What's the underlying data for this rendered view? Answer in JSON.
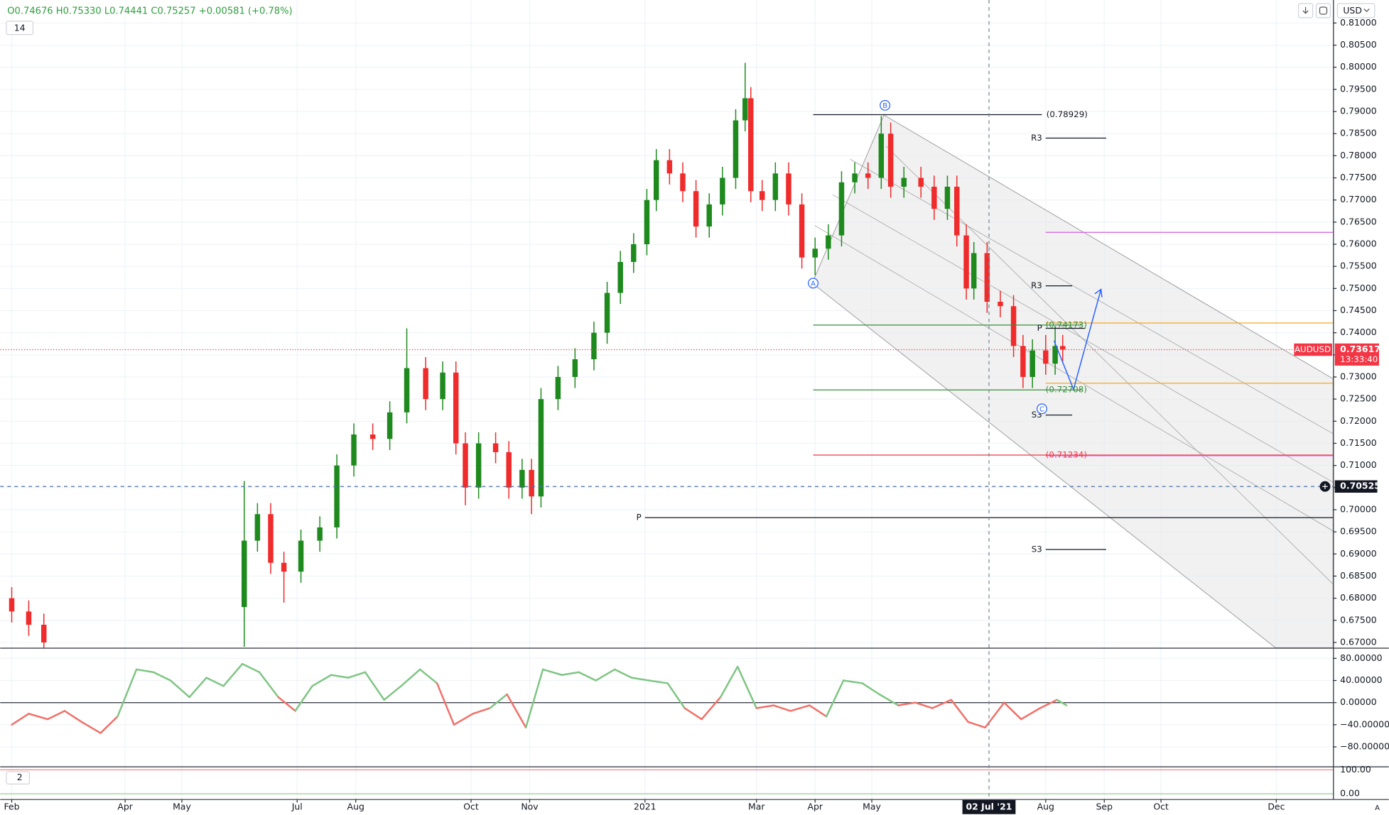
{
  "header": {
    "ohlc": "O0.74676 H0.75330 L0.74441 C0.75257 +0.00581 (+0.78%)",
    "indicator_1": "14",
    "indicator_2": "2",
    "currency": "USD"
  },
  "chart_data": [
    {
      "type": "candlestick",
      "symbol": "AUDUSD",
      "up_color": "#1e8a1e",
      "down_color": "#ef2b2b",
      "x": [
        0,
        9,
        17,
        123,
        130,
        137,
        144,
        153,
        163,
        172,
        181,
        191,
        200,
        209,
        219,
        228,
        235,
        240,
        247,
        256,
        263,
        270,
        275,
        280,
        289,
        298,
        308,
        315,
        322,
        329,
        336,
        341,
        348,
        355,
        362,
        369,
        376,
        383,
        388,
        391,
        397,
        404,
        411,
        418,
        425,
        432,
        439,
        446,
        453,
        460,
        465,
        472,
        481,
        488,
        495,
        500,
        505,
        509,
        516,
        523,
        530,
        535,
        540,
        547,
        552,
        556
      ],
      "open": [
        0.68,
        0.677,
        0.674,
        0.678,
        0.693,
        0.699,
        0.688,
        0.686,
        0.693,
        0.696,
        0.71,
        0.717,
        0.716,
        0.722,
        0.732,
        0.725,
        0.731,
        0.715,
        0.705,
        0.715,
        0.713,
        0.705,
        0.709,
        0.703,
        0.725,
        0.73,
        0.734,
        0.74,
        0.749,
        0.756,
        0.76,
        0.77,
        0.779,
        0.776,
        0.772,
        0.764,
        0.769,
        0.775,
        0.788,
        0.793,
        0.772,
        0.77,
        0.776,
        0.769,
        0.757,
        0.759,
        0.762,
        0.774,
        0.776,
        0.775,
        0.785,
        0.773,
        0.775,
        0.773,
        0.768,
        0.773,
        0.762,
        0.75,
        0.758,
        0.747,
        0.746,
        0.737,
        0.73,
        0.736,
        0.733,
        0.737
      ],
      "high": [
        0.6825,
        0.6795,
        0.6765,
        0.7065,
        0.7015,
        0.7015,
        0.6905,
        0.6955,
        0.6985,
        0.7125,
        0.7195,
        0.7195,
        0.7245,
        0.741,
        0.7345,
        0.7335,
        0.7335,
        0.7175,
        0.7175,
        0.7175,
        0.7155,
        0.7115,
        0.7115,
        0.7275,
        0.7325,
        0.7365,
        0.7425,
        0.7515,
        0.7585,
        0.7625,
        0.7725,
        0.7815,
        0.7815,
        0.7785,
        0.7745,
        0.7715,
        0.7775,
        0.7905,
        0.801,
        0.7955,
        0.7745,
        0.7785,
        0.7785,
        0.7715,
        0.7615,
        0.7645,
        0.7765,
        0.7785,
        0.7785,
        0.789,
        0.7875,
        0.7775,
        0.7775,
        0.7755,
        0.7755,
        0.7755,
        0.7645,
        0.7605,
        0.7605,
        0.7495,
        0.7485,
        0.7395,
        0.7385,
        0.7395,
        0.7415,
        0.7395
      ],
      "low": [
        0.6745,
        0.6715,
        0.6675,
        0.669,
        0.6905,
        0.6855,
        0.679,
        0.6835,
        0.6905,
        0.6935,
        0.7075,
        0.7135,
        0.7135,
        0.7195,
        0.7225,
        0.7225,
        0.7125,
        0.701,
        0.7025,
        0.7105,
        0.7025,
        0.7025,
        0.699,
        0.7005,
        0.7225,
        0.7275,
        0.7315,
        0.7375,
        0.7465,
        0.7535,
        0.7575,
        0.7675,
        0.7735,
        0.7695,
        0.7615,
        0.7615,
        0.7665,
        0.7725,
        0.7855,
        0.7695,
        0.7675,
        0.7675,
        0.7665,
        0.7545,
        0.753,
        0.7565,
        0.7595,
        0.7715,
        0.7725,
        0.7725,
        0.7705,
        0.7705,
        0.7705,
        0.7655,
        0.7655,
        0.7595,
        0.7475,
        0.7475,
        0.7445,
        0.7435,
        0.7345,
        0.7275,
        0.7275,
        0.7305,
        0.7305,
        0.7335
      ],
      "close": [
        0.677,
        0.674,
        0.67,
        0.693,
        0.699,
        0.688,
        0.686,
        0.693,
        0.696,
        0.71,
        0.717,
        0.716,
        0.722,
        0.732,
        0.725,
        0.731,
        0.715,
        0.705,
        0.715,
        0.713,
        0.705,
        0.709,
        0.703,
        0.725,
        0.73,
        0.734,
        0.74,
        0.749,
        0.756,
        0.76,
        0.77,
        0.779,
        0.776,
        0.772,
        0.764,
        0.769,
        0.775,
        0.788,
        0.793,
        0.772,
        0.77,
        0.776,
        0.769,
        0.757,
        0.759,
        0.762,
        0.774,
        0.776,
        0.775,
        0.785,
        0.773,
        0.775,
        0.773,
        0.768,
        0.773,
        0.762,
        0.75,
        0.758,
        0.747,
        0.746,
        0.737,
        0.73,
        0.736,
        0.733,
        0.737,
        0.7362
      ],
      "xlim": [
        -6.1,
        699
      ],
      "ylim": [
        0.6688,
        0.8152
      ],
      "xticks": [
        {
          "value": 0,
          "label": "Feb"
        },
        {
          "value": 60,
          "label": "Apr"
        },
        {
          "value": 90,
          "label": "May"
        },
        {
          "value": 151,
          "label": "Jul"
        },
        {
          "value": 182,
          "label": "Aug"
        },
        {
          "value": 243,
          "label": "Oct"
        },
        {
          "value": 274,
          "label": "Nov"
        },
        {
          "value": 335,
          "label": "2021"
        },
        {
          "value": 394,
          "label": "Mar"
        },
        {
          "value": 425,
          "label": "Apr"
        },
        {
          "value": 455,
          "label": "May"
        },
        {
          "value": 547,
          "label": "Aug"
        },
        {
          "value": 578,
          "label": "Sep"
        },
        {
          "value": 608,
          "label": "Oct"
        },
        {
          "value": 669,
          "label": "Dec"
        }
      ],
      "yticks": [
        {
          "value": 0.67,
          "label": "0.67000"
        },
        {
          "value": 0.675,
          "label": "0.67500"
        },
        {
          "value": 0.68,
          "label": "0.68000"
        },
        {
          "value": 0.685,
          "label": "0.68500"
        },
        {
          "value": 0.69,
          "label": "0.69000"
        },
        {
          "value": 0.695,
          "label": "0.69500"
        },
        {
          "value": 0.7,
          "label": "0.70000"
        },
        {
          "value": 0.705,
          "label": "0.70500"
        },
        {
          "value": 0.71,
          "label": "0.71000"
        },
        {
          "value": 0.715,
          "label": "0.71500"
        },
        {
          "value": 0.72,
          "label": "0.72000"
        },
        {
          "value": 0.725,
          "label": "0.72500"
        },
        {
          "value": 0.73,
          "label": "0.73000"
        },
        {
          "value": 0.735,
          "label": "0.73500"
        },
        {
          "value": 0.74,
          "label": "0.74000"
        },
        {
          "value": 0.745,
          "label": "0.74500"
        },
        {
          "value": 0.75,
          "label": "0.75000"
        },
        {
          "value": 0.755,
          "label": "0.75500"
        },
        {
          "value": 0.76,
          "label": "0.76000"
        },
        {
          "value": 0.765,
          "label": "0.76500"
        },
        {
          "value": 0.77,
          "label": "0.77000"
        },
        {
          "value": 0.775,
          "label": "0.77500"
        },
        {
          "value": 0.78,
          "label": "0.78000"
        },
        {
          "value": 0.785,
          "label": "0.78500"
        },
        {
          "value": 0.79,
          "label": "0.79000"
        },
        {
          "value": 0.795,
          "label": "0.79500"
        },
        {
          "value": 0.8,
          "label": "0.80000"
        },
        {
          "value": 0.805,
          "label": "0.80500"
        },
        {
          "value": 0.81,
          "label": "0.81000"
        }
      ],
      "grid": true,
      "last_price": {
        "value": 0.73617,
        "label": "0.73617"
      },
      "countdown": "13:33:40",
      "crosshair": {
        "x": 517,
        "x_label": "02 Jul '21",
        "y": 0.70525,
        "y_label": "0.70525"
      },
      "levels": [
        {
          "value": 0.78929,
          "label": "(0.78929)",
          "color": "#131722",
          "from": 424,
          "to": 545,
          "style": "fib"
        },
        {
          "value": 0.74173,
          "label": "(0.74173)",
          "color": "#388e3c",
          "from": 424,
          "to": 566,
          "style": "fib"
        },
        {
          "value": 0.72708,
          "label": "(0.72708)",
          "color": "#388e3c",
          "from": 424,
          "to": 566,
          "style": "fib"
        },
        {
          "value": 0.71234,
          "label": "(0.71234)",
          "color": "#f23645",
          "from": 424,
          "to": 699,
          "style": "fib"
        },
        {
          "value": 0.784,
          "label": "R3",
          "color": "#131722",
          "from": 547,
          "to": 579,
          "style": "pivot"
        },
        {
          "value": 0.7506,
          "label": "R3",
          "color": "#131722",
          "from": 547,
          "to": 561,
          "style": "pivot"
        },
        {
          "value": 0.741,
          "label": "P",
          "color": "#131722",
          "from": 547,
          "to": 568,
          "style": "pivot"
        },
        {
          "value": 0.7214,
          "label": "S3",
          "color": "#131722",
          "from": 547,
          "to": 561,
          "style": "pivot"
        },
        {
          "value": 0.6982,
          "label": "P",
          "color": "#131722",
          "from": 335,
          "to": 699,
          "style": "pivot"
        },
        {
          "value": 0.691,
          "label": "S3",
          "color": "#131722",
          "from": 547,
          "to": 579,
          "style": "pivot"
        },
        {
          "value": 0.7422,
          "color": "#f5a623",
          "from": 547,
          "to": 699
        },
        {
          "value": 0.7286,
          "color": "#f5a623",
          "from": 547,
          "to": 699
        },
        {
          "value": 0.7627,
          "color": "#d05ce3",
          "from": 547,
          "to": 699
        },
        {
          "value": 0.7122,
          "color": "#d05ce3",
          "from": 547,
          "to": 699
        }
      ],
      "waves": [
        {
          "label": "A",
          "x": 424,
          "y": 0.7512
        },
        {
          "label": "B",
          "x": 462,
          "y": 0.7914
        },
        {
          "label": "C",
          "x": 545,
          "y": 0.7228
        }
      ]
    },
    {
      "type": "line",
      "pos_color": "#7fc583",
      "neg_color": "#f07068",
      "x": [
        0,
        9,
        19,
        28,
        37,
        47,
        56,
        66,
        75,
        84,
        94,
        103,
        112,
        122,
        131,
        141,
        150,
        159,
        169,
        178,
        187,
        197,
        206,
        216,
        225,
        234,
        244,
        253,
        262,
        272,
        281,
        291,
        300,
        309,
        319,
        328,
        337,
        347,
        356,
        365,
        375,
        384,
        394,
        403,
        412,
        422,
        431,
        440,
        450,
        459,
        469,
        478,
        487,
        497,
        506,
        515,
        525,
        534,
        544,
        553,
        558
      ],
      "values": [
        -40,
        -20,
        -30,
        -15,
        -35,
        -55,
        -25,
        60,
        55,
        40,
        10,
        45,
        30,
        70,
        55,
        10,
        -15,
        30,
        50,
        45,
        55,
        5,
        30,
        60,
        35,
        -40,
        -20,
        -10,
        15,
        -45,
        60,
        50,
        55,
        40,
        60,
        45,
        40,
        35,
        -10,
        -30,
        10,
        65,
        -10,
        -5,
        -15,
        -5,
        -25,
        40,
        35,
        15,
        -5,
        0,
        -10,
        5,
        -35,
        -45,
        0,
        -30,
        -10,
        5,
        -5
      ],
      "ylim": [
        -115.2,
        97.6
      ],
      "yticks": [
        {
          "value": -80,
          "label": "−80.00000"
        },
        {
          "value": -40,
          "label": "−40.00000"
        },
        {
          "value": 0,
          "label": "0.00000"
        },
        {
          "value": 40,
          "label": "40.00000"
        },
        {
          "value": 80,
          "label": "80.00000"
        }
      ]
    },
    {
      "type": "oscillator",
      "ylim": [
        -22.2,
        111
      ],
      "yticks": [
        {
          "value": 0,
          "label": "0.00"
        },
        {
          "value": 100,
          "label": "100.00"
        }
      ]
    }
  ]
}
